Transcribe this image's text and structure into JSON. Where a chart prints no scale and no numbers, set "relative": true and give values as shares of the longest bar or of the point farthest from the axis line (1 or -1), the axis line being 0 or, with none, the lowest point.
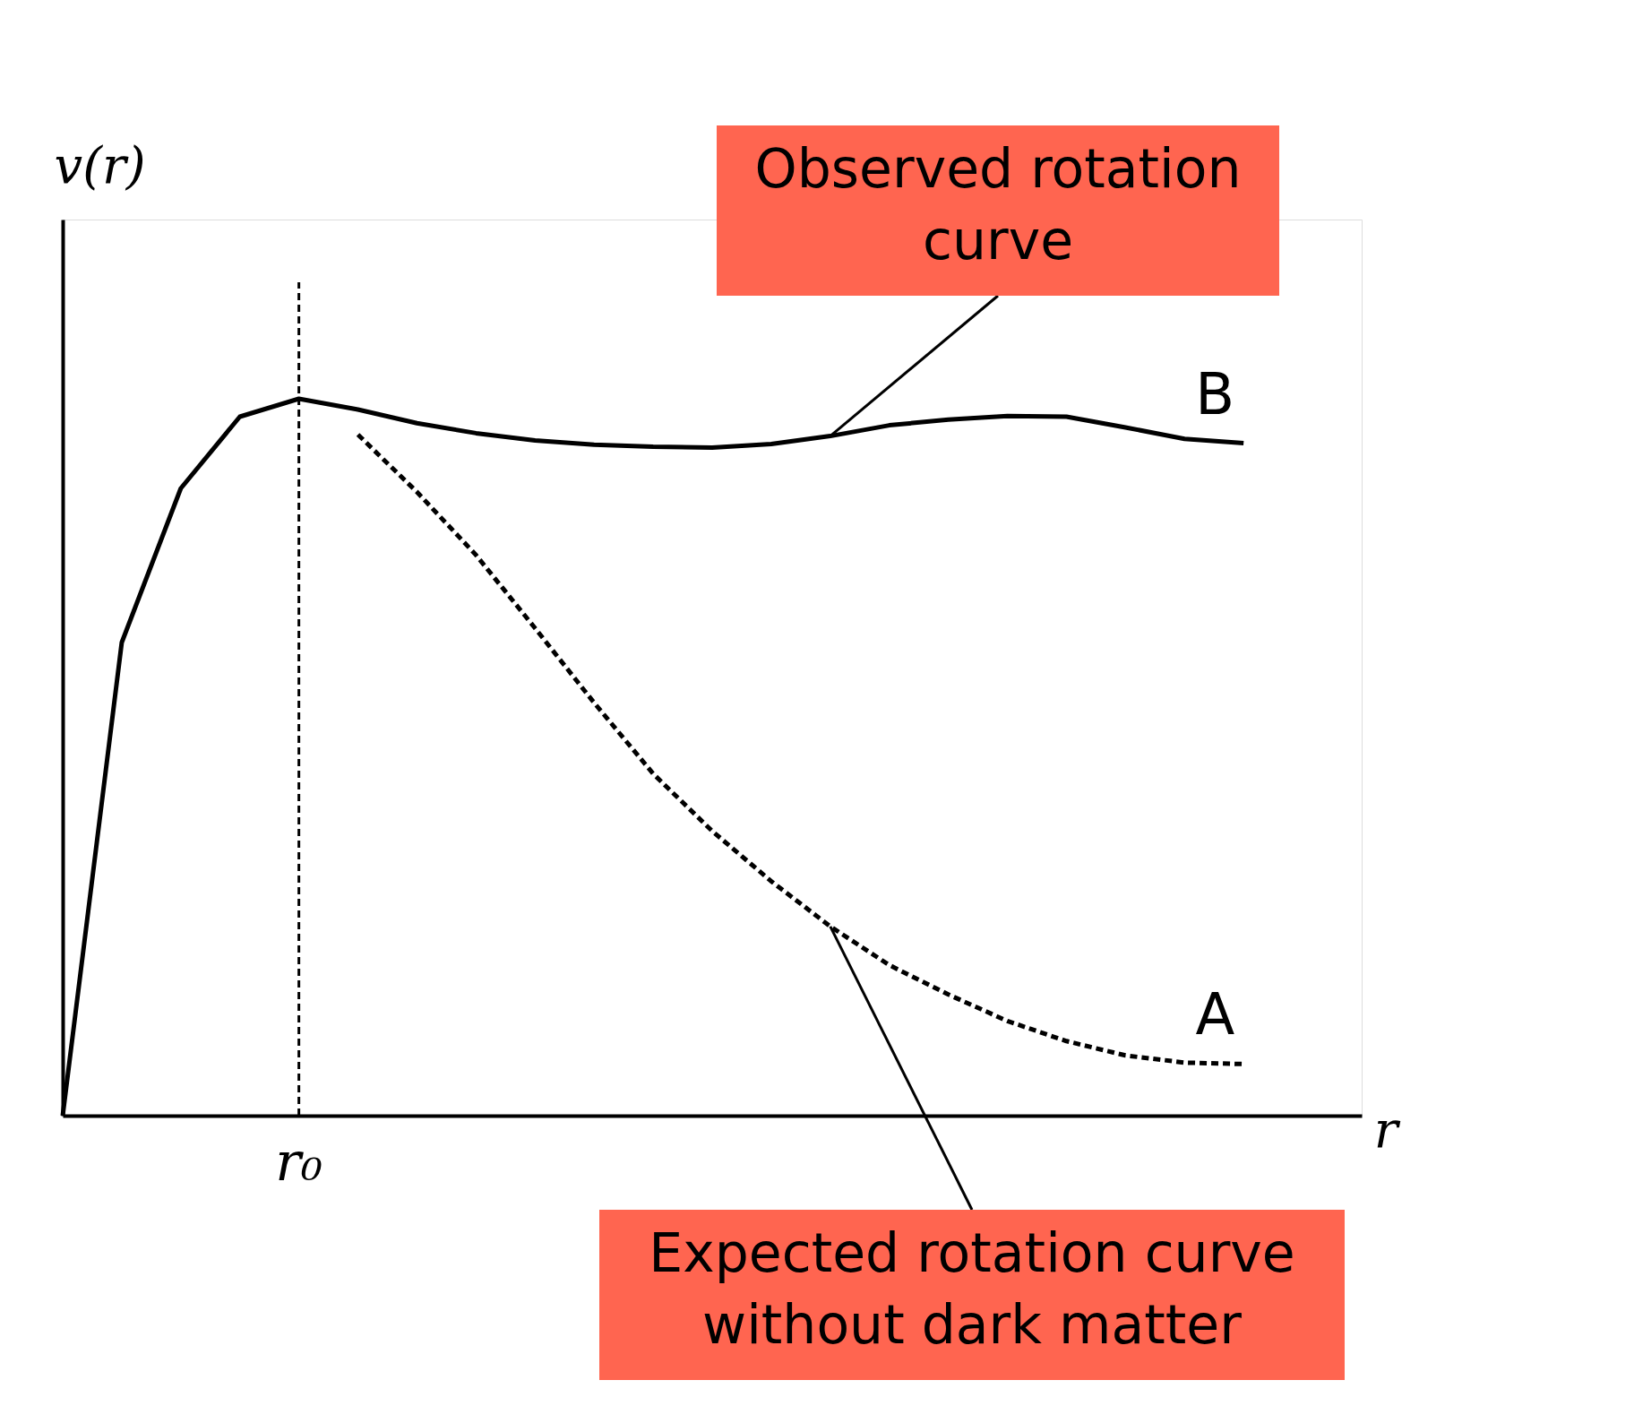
{
  "chart_data": {
    "type": "line",
    "relative": true,
    "xlabel": "r",
    "ylabel": "v(r)",
    "marker": "none",
    "categories": [
      null,
      null,
      null,
      null,
      null,
      null,
      null,
      null,
      null,
      null,
      null,
      null,
      null,
      null,
      null,
      null,
      null,
      null,
      null,
      null,
      null
    ],
    "series": [
      {
        "name": "B",
        "color": "#000000",
        "line_style": "solid",
        "values": [
          0,
          0.66,
          0.875,
          0.975,
          1.0,
          0.985,
          0.966,
          0.952,
          0.942,
          0.936,
          0.933,
          0.932,
          0.937,
          0.948,
          0.963,
          0.971,
          0.976,
          0.975,
          0.96,
          0.944,
          0.938
        ]
      },
      {
        "name": "A",
        "color": "#000000",
        "line_style": "dashed",
        "values": [
          null,
          null,
          null,
          null,
          null,
          0.95,
          0.87,
          0.782,
          0.68,
          0.576,
          0.477,
          0.397,
          0.327,
          0.264,
          0.21,
          0.169,
          0.132,
          0.104,
          0.084,
          0.074,
          0.072
        ]
      }
    ],
    "annotations": [
      "r₀",
      "Observed rotation curve",
      "Expected rotation curve without dark matter"
    ]
  }
}
